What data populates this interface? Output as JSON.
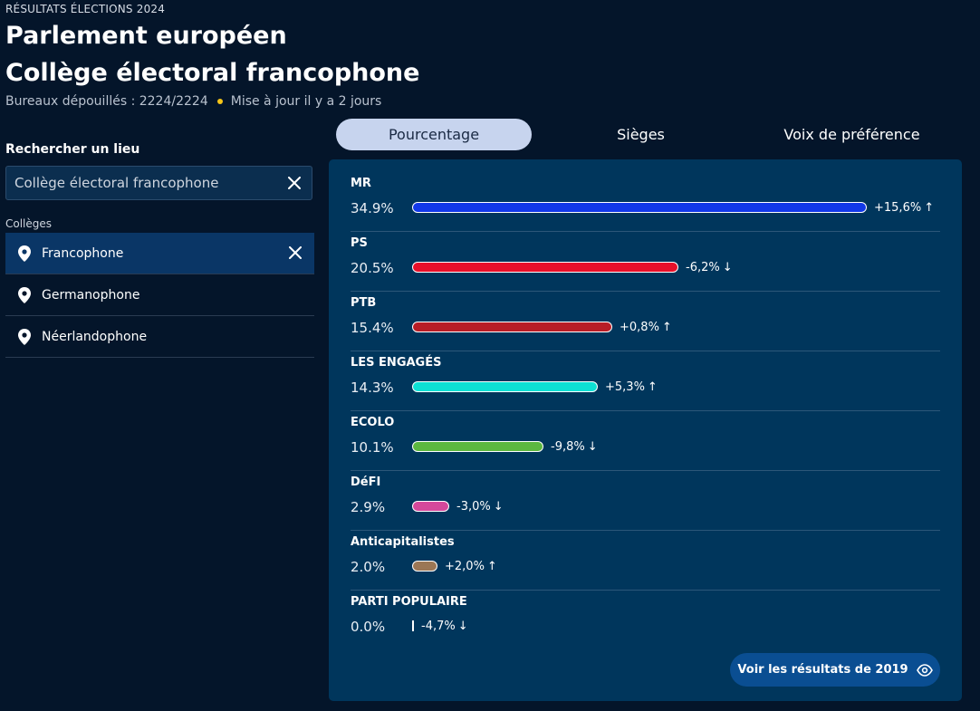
{
  "header": {
    "eyebrow": "RÉSULTATS ÉLECTIONS 2024",
    "title_line1": "Parlement européen",
    "title_line2": "Collège électoral francophone",
    "bureaux": "Bureaux dépouillés : 2224/2224",
    "updated": "Mise à jour il y a 2 jours",
    "status_dot_color": "#f5c518"
  },
  "sidebar": {
    "search_label": "Rechercher un lieu",
    "search_value": "Collège électoral francophone",
    "group_label": "Collèges",
    "items": [
      {
        "label": "Francophone",
        "active": true
      },
      {
        "label": "Germanophone",
        "active": false
      },
      {
        "label": "Néerlandophone",
        "active": false
      }
    ]
  },
  "tabs": [
    {
      "label": "Pourcentage",
      "active": true
    },
    {
      "label": "Sièges",
      "active": false
    },
    {
      "label": "Voix de préférence",
      "active": false
    }
  ],
  "results": [
    {
      "party": "MR",
      "percent_label": "34.9%",
      "percent": 34.9,
      "delta": "+15,6%",
      "direction": "up",
      "color": "#1238e8"
    },
    {
      "party": "PS",
      "percent_label": "20.5%",
      "percent": 20.5,
      "delta": "-6,2%",
      "direction": "down",
      "color": "#e8102a"
    },
    {
      "party": "PTB",
      "percent_label": "15.4%",
      "percent": 15.4,
      "delta": "+0,8%",
      "direction": "up",
      "color": "#b81d26"
    },
    {
      "party": "LES ENGAGÉS",
      "percent_label": "14.3%",
      "percent": 14.3,
      "delta": "+5,3%",
      "direction": "up",
      "color": "#0de0d4"
    },
    {
      "party": "ECOLO",
      "percent_label": "10.1%",
      "percent": 10.1,
      "delta": "-9,8%",
      "direction": "down",
      "color": "#5cb840"
    },
    {
      "party": "DéFI",
      "percent_label": "2.9%",
      "percent": 2.9,
      "delta": "-3,0%",
      "direction": "down",
      "color": "#d5489b"
    },
    {
      "party": "Anticapitalistes",
      "percent_label": "2.0%",
      "percent": 2.0,
      "delta": "+2,0%",
      "direction": "up",
      "color": "#9b7755"
    },
    {
      "party": "PARTI POPULAIRE",
      "percent_label": "0.0%",
      "percent": 0.0,
      "delta": "-4,7%",
      "direction": "down",
      "color": "#ffffff"
    }
  ],
  "cta": {
    "label": "Voir les résultats de 2019",
    "icon": "eye-icon"
  }
}
